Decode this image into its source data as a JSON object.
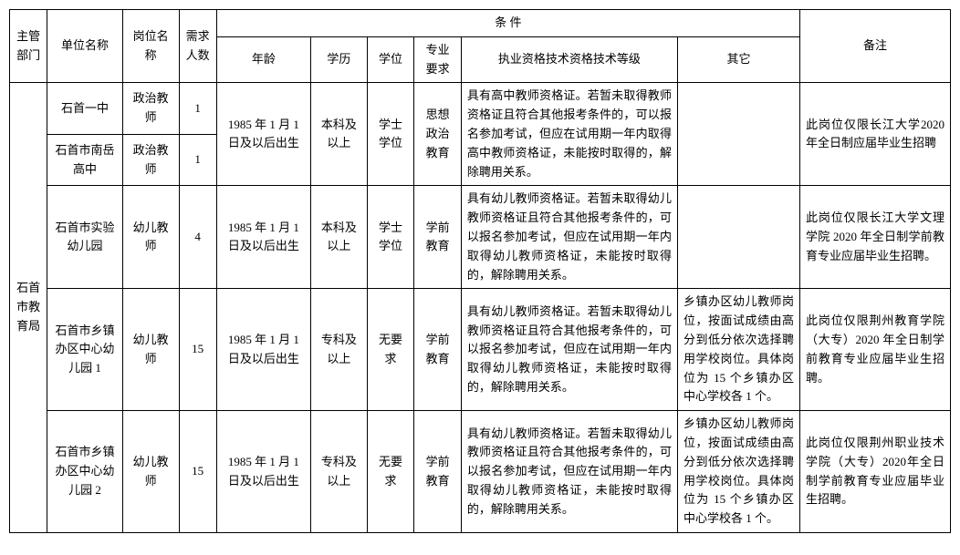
{
  "headers": {
    "dept": "主管部门",
    "unit": "单位名称",
    "post": "岗位名称",
    "count": "需求人数",
    "conditions": "条   件",
    "age": "年龄",
    "edu": "学历",
    "deg": "学位",
    "major": "专业要求",
    "qual": "执业资格技术资格技术等级",
    "other": "其它",
    "note": "备注"
  },
  "dept_name": "石首市教育局",
  "rows": [
    {
      "unit": "石首一中",
      "post": "政治教师",
      "count": "1",
      "age": "1985 年 1 月 1 日及以后出生",
      "edu": "本科及以上",
      "deg": "学士学位",
      "major": "思想政治教育",
      "qual": "具有高中教师资格证。若暂未取得教师资格证且符合其他报考条件的，可以报名参加考试，但应在试用期一年内取得高中教师资格证，未能按时取得的，解除聘用关系。",
      "other": "",
      "note": "此岗位仅限长江大学2020 年全日制应届毕业生招聘"
    },
    {
      "unit": "石首市南岳高中",
      "post": "政治教师",
      "count": "1"
    },
    {
      "unit": "石首市实验幼儿园",
      "post": "幼儿教师",
      "count": "4",
      "age": "1985 年 1 月 1 日及以后出生",
      "edu": "本科及以上",
      "deg": "学士学位",
      "major": "学前教育",
      "qual": "具有幼儿教师资格证。若暂未取得幼儿教师资格证且符合其他报考条件的，可以报名参加考试，但应在试用期一年内取得幼儿教师资格证，未能按时取得的，解除聘用关系。",
      "other": "",
      "note": "此岗位仅限长江大学文理学院 2020 年全日制学前教育专业应届毕业生招聘。"
    },
    {
      "unit": "石首市乡镇办区中心幼儿园 1",
      "post": "幼儿教师",
      "count": "15",
      "age": "1985 年 1 月 1 日及以后出生",
      "edu": "专科及以上",
      "deg": "无要求",
      "major": "学前教育",
      "qual": "具有幼儿教师资格证。若暂未取得幼儿教师资格证且符合其他报考条件的，可以报名参加考试，但应在试用期一年内取得幼儿教师资格证，未能按时取得的，解除聘用关系。",
      "other": "乡镇办区幼儿教师岗位，按面试成绩由高分到低分依次选择聘用学校岗位。具体岗位为 15 个乡镇办区中心学校各 1 个。",
      "note": "此岗位仅限荆州教育学院（大专）2020 年全日制学前教育专业应届毕业生招聘。"
    },
    {
      "unit": "石首市乡镇办区中心幼儿园 2",
      "post": "幼儿教师",
      "count": "15",
      "age": "1985 年 1 月 1 日及以后出生",
      "edu": "专科及以上",
      "deg": "无要求",
      "major": "学前教育",
      "qual": "具有幼儿教师资格证。若暂未取得幼儿教师资格证且符合其他报考条件的，可以报名参加考试，但应在试用期一年内取得幼儿教师资格证，未能按时取得的，解除聘用关系。",
      "other": "乡镇办区幼儿教师岗位，按面试成绩由高分到低分依次选择聘用学校岗位。具体岗位为 15 个乡镇办区中心学校各 1 个。",
      "note": "此岗位仅限荆州职业技术学院（大专）2020年全日制学前教育专业应届毕业生招聘。"
    }
  ],
  "colors": {
    "border": "#000000",
    "background": "#ffffff",
    "text": "#000000"
  },
  "font": {
    "family": "SimSun",
    "size_pt": 13
  }
}
